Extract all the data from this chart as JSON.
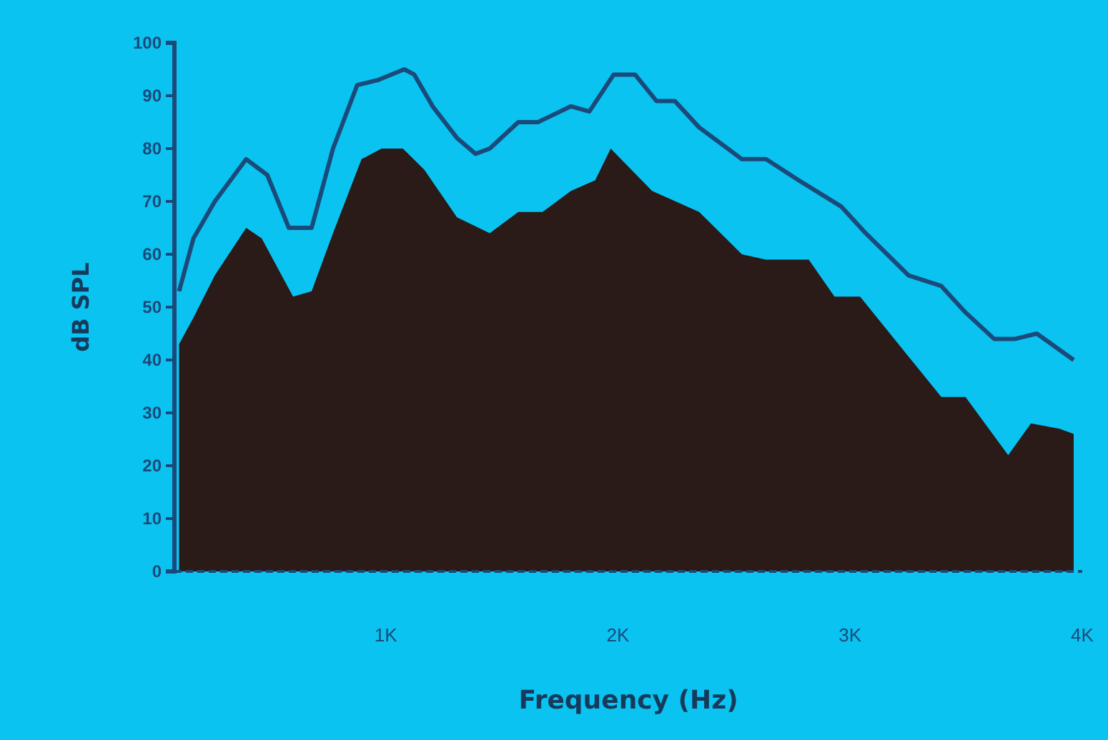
{
  "chart_data": {
    "type": "area",
    "xlabel": "Frequency (Hz)",
    "ylabel": "dB SPL",
    "xlim": [
      90,
      4000
    ],
    "ylim": [
      0,
      100
    ],
    "xticks": [
      {
        "value": 1000,
        "label": "1K"
      },
      {
        "value": 2000,
        "label": "2K"
      },
      {
        "value": 3000,
        "label": "3K"
      },
      {
        "value": 4000,
        "label": "4K"
      }
    ],
    "yticks": [
      0,
      10,
      20,
      30,
      40,
      50,
      60,
      70,
      80,
      90,
      100
    ],
    "grid": false,
    "series": [
      {
        "color": "#2a1a18",
        "x": [
          110,
          172,
          264,
          399,
          466,
          601,
          681,
          773,
          896,
          982,
          1074,
          1166,
          1307,
          1448,
          1571,
          1675,
          1798,
          1902,
          1969,
          2147,
          2350,
          2534,
          2638,
          2822,
          2933,
          3043,
          3227,
          3393,
          3497,
          3681,
          3779,
          3902,
          3963
        ],
        "values": [
          43,
          48,
          56,
          65,
          63,
          52,
          53,
          64,
          78,
          80,
          80,
          76,
          67,
          64,
          68,
          68,
          72,
          74,
          80,
          72,
          68,
          60,
          59,
          59,
          52,
          52,
          42,
          33,
          33,
          22,
          28,
          27,
          26
        ]
      },
      {
        "type": "line",
        "color": "#1a4a7a",
        "x": [
          110,
          172,
          264,
          399,
          490,
          583,
          681,
          773,
          877,
          969,
          1080,
          1123,
          1202,
          1307,
          1387,
          1448,
          1571,
          1656,
          1798,
          1877,
          1982,
          2074,
          2166,
          2245,
          2350,
          2534,
          2638,
          2779,
          2963,
          3067,
          3252,
          3393,
          3497,
          3620,
          3712,
          3804,
          3963
        ],
        "values": [
          53,
          63,
          70,
          78,
          75,
          65,
          65,
          80,
          92,
          93,
          95,
          94,
          88,
          82,
          79,
          80,
          85,
          85,
          88,
          87,
          94,
          94,
          89,
          89,
          84,
          78,
          78,
          74,
          69,
          64,
          56,
          54,
          49,
          44,
          44,
          45,
          40
        ]
      }
    ]
  }
}
